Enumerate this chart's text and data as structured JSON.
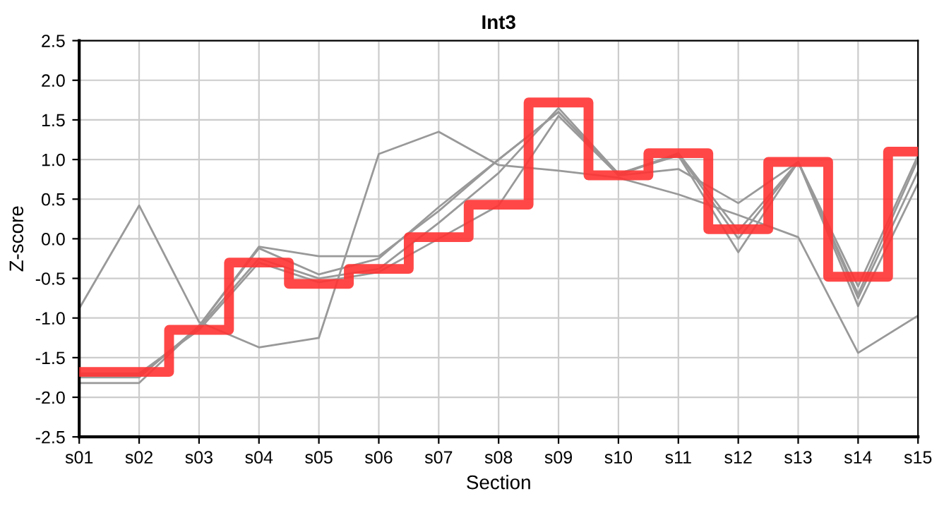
{
  "chart_data": {
    "type": "line",
    "title": "Int3",
    "xlabel": "Section",
    "ylabel": "Z-score",
    "categories": [
      "s01",
      "s02",
      "s03",
      "s04",
      "s05",
      "s06",
      "s07",
      "s08",
      "s09",
      "s10",
      "s11",
      "s12",
      "s13",
      "s14",
      "s15"
    ],
    "ylim": [
      -2.5,
      2.5
    ],
    "yticks": [
      {
        "value": -2.5,
        "label": "-2.5"
      },
      {
        "value": -2.0,
        "label": "-2.0"
      },
      {
        "value": -1.5,
        "label": "-1.5"
      },
      {
        "value": -1.0,
        "label": "-1.0"
      },
      {
        "value": -0.5,
        "label": "-0.5"
      },
      {
        "value": 0.0,
        "label": "0.0"
      },
      {
        "value": 0.5,
        "label": "0.5"
      },
      {
        "value": 1.0,
        "label": "1.0"
      },
      {
        "value": 1.5,
        "label": "1.5"
      },
      {
        "value": 2.0,
        "label": "2.0"
      },
      {
        "value": 2.5,
        "label": "2.5"
      }
    ],
    "grid": true,
    "marker": "none",
    "line_style": "solid",
    "series": [
      {
        "color": "#999999",
        "values": [
          -0.88,
          0.42,
          -1.05,
          -1.37,
          -1.25,
          1.07,
          1.35,
          0.93,
          0.86,
          0.77,
          0.56,
          0.3,
          0.02,
          -1.44,
          -0.97
        ]
      },
      {
        "color": "#999999",
        "values": [
          -1.82,
          -1.82,
          -1.1,
          -0.1,
          -0.22,
          -0.22,
          0.35,
          1.0,
          1.6,
          0.8,
          0.88,
          0.45,
          0.97,
          -0.7,
          1.0
        ]
      },
      {
        "color": "#999999",
        "values": [
          -1.75,
          -1.75,
          -1.1,
          -0.12,
          -0.45,
          -0.25,
          0.4,
          1.0,
          1.6,
          0.82,
          1.05,
          -0.17,
          0.97,
          -0.85,
          0.7
        ]
      },
      {
        "color": "#999999",
        "values": [
          -1.72,
          -1.72,
          -1.12,
          -0.25,
          -0.5,
          -0.38,
          0.2,
          0.83,
          1.65,
          0.82,
          1.07,
          0.0,
          0.97,
          -0.75,
          0.85
        ]
      },
      {
        "color": "#999999",
        "values": [
          -1.7,
          -1.7,
          -1.15,
          -0.3,
          -0.55,
          -0.42,
          0.0,
          0.42,
          1.55,
          0.8,
          1.08,
          0.1,
          0.97,
          -0.6,
          1.05
        ]
      },
      {
        "type": "step",
        "color": "#ff3333",
        "values": [
          -1.68,
          -1.68,
          -1.15,
          -0.3,
          -0.57,
          -0.38,
          0.02,
          0.43,
          1.72,
          0.8,
          1.08,
          0.12,
          0.97,
          -0.48,
          1.1
        ]
      }
    ]
  }
}
